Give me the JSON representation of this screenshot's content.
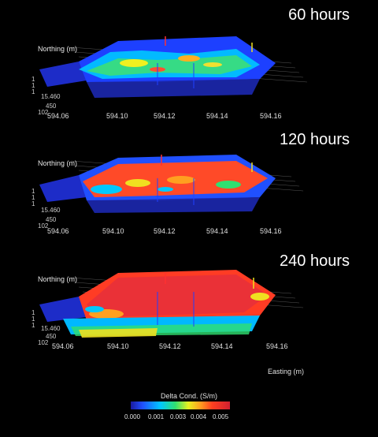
{
  "panels": [
    {
      "title": "60 hours",
      "northing_label": "Northing (m)",
      "northing_values": [
        "1",
        "1",
        "1",
        "15.460",
        "450",
        "102"
      ]
    },
    {
      "title": "120 hours",
      "northing_label": "Northing (m)",
      "northing_values": [
        "1",
        "1",
        "1",
        "15.460",
        "450",
        "102"
      ]
    },
    {
      "title": "240 hours",
      "northing_label": "Northing (m)",
      "northing_values": [
        "1",
        "1",
        "1",
        "15.460",
        "450",
        "102"
      ]
    }
  ],
  "easting_ticks": [
    "594.06",
    "594.10",
    "594.12",
    "594.14",
    "594.16"
  ],
  "easting_label": "Easting (m)",
  "colorbar": {
    "title": "Delta Cond. (S/m)",
    "ticks": [
      "0.000",
      "0.001",
      "0.003",
      "0.004",
      "0.005"
    ],
    "colors": [
      "#1a1aa0",
      "#2050ff",
      "#00c8ff",
      "#30e070",
      "#e8f020",
      "#ffa020",
      "#ff4020",
      "#d02030"
    ]
  }
}
